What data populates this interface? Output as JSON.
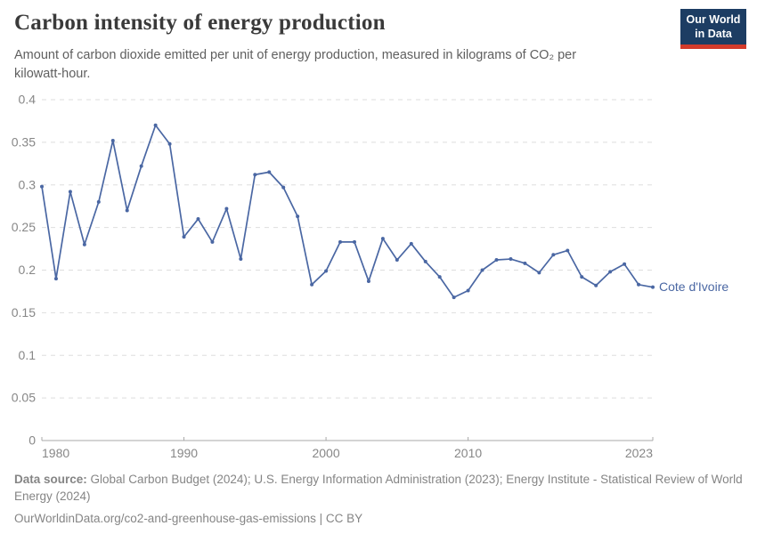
{
  "header": {
    "title": "Carbon intensity of energy production",
    "subtitle": "Amount of carbon dioxide emitted per unit of energy production, measured in kilograms of CO₂ per kilowatt-hour.",
    "logo": {
      "line1": "Our World",
      "line2": "in Data",
      "bg_color": "#1d3d63",
      "accent_color": "#d33b2b"
    }
  },
  "chart_data": {
    "type": "line",
    "title": "Carbon intensity of energy production",
    "xlabel": "",
    "ylabel": "kilograms of CO₂ per kilowatt-hour",
    "xlim": [
      1980,
      2023
    ],
    "ylim": [
      0,
      0.4
    ],
    "xticks": [
      1980,
      1990,
      2000,
      2010,
      2023
    ],
    "yticks": [
      0,
      0.05,
      0.1,
      0.15,
      0.2,
      0.25,
      0.3,
      0.35,
      0.4
    ],
    "grid": "horizontal-dashed",
    "legend_position": "end-of-line-label",
    "series": [
      {
        "name": "Cote d'Ivoire",
        "color": "#4A67A3",
        "x": [
          1980,
          1981,
          1982,
          1983,
          1984,
          1985,
          1986,
          1987,
          1988,
          1989,
          1990,
          1991,
          1992,
          1993,
          1994,
          1995,
          1996,
          1997,
          1998,
          1999,
          2000,
          2001,
          2002,
          2003,
          2004,
          2005,
          2006,
          2007,
          2008,
          2009,
          2010,
          2011,
          2012,
          2013,
          2014,
          2015,
          2016,
          2017,
          2018,
          2019,
          2020,
          2021,
          2022,
          2023
        ],
        "values": [
          0.298,
          0.19,
          0.292,
          0.23,
          0.28,
          0.352,
          0.27,
          0.322,
          0.37,
          0.348,
          0.239,
          0.26,
          0.233,
          0.272,
          0.213,
          0.312,
          0.315,
          0.297,
          0.263,
          0.183,
          0.199,
          0.233,
          0.233,
          0.187,
          0.237,
          0.212,
          0.231,
          0.21,
          0.192,
          0.168,
          0.176,
          0.2,
          0.212,
          0.213,
          0.208,
          0.197,
          0.218,
          0.223,
          0.192,
          0.182,
          0.198,
          0.207,
          0.183,
          0.18
        ]
      }
    ],
    "colors": {
      "gridline": "#dedede",
      "axis": "#a8a8a8",
      "tick_label": "#878787"
    }
  },
  "footer": {
    "datasource_label": "Data source:",
    "datasource_text": " Global Carbon Budget (2024); U.S. Energy Information Administration (2023); Energy Institute - Statistical Review of World Energy (2024)",
    "link_line": "OurWorldinData.org/co2-and-greenhouse-gas-emissions | CC BY"
  }
}
